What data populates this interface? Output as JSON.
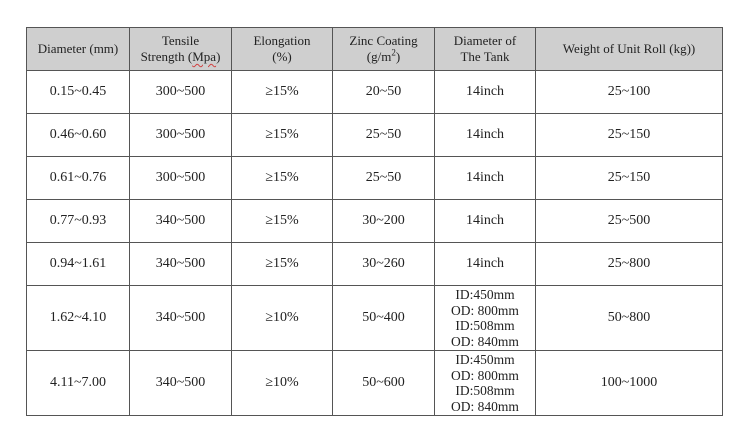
{
  "table": {
    "headers": {
      "diameter": "Diameter (mm)",
      "tensile_line1": "Tensile",
      "tensile_line2_prefix": "Strength (",
      "tensile_unit": "Mpa",
      "tensile_line2_suffix": ")",
      "elongation_line1": "Elongation",
      "elongation_line2": "(%)",
      "zinc_line1": "Zinc Coating",
      "zinc_line2_prefix": "(g/m",
      "zinc_sup": "2",
      "zinc_line2_suffix": ")",
      "tank_line1": "Diameter of",
      "tank_line2": "The Tank",
      "weight": "Weight of Unit Roll (kg))"
    },
    "rows": [
      {
        "diameter": "0.15~0.45",
        "tensile": "300~500",
        "elongation": "≥15%",
        "zinc": "20~50",
        "tank": [
          "14inch"
        ],
        "weight": "25~100"
      },
      {
        "diameter": "0.46~0.60",
        "tensile": "300~500",
        "elongation": "≥15%",
        "zinc": "25~50",
        "tank": [
          "14inch"
        ],
        "weight": "25~150"
      },
      {
        "diameter": "0.61~0.76",
        "tensile": "300~500",
        "elongation": "≥15%",
        "zinc": "25~50",
        "tank": [
          "14inch"
        ],
        "weight": "25~150"
      },
      {
        "diameter": "0.77~0.93",
        "tensile": "340~500",
        "elongation": "≥15%",
        "zinc": "30~200",
        "tank": [
          "14inch"
        ],
        "weight": "25~500"
      },
      {
        "diameter": "0.94~1.61",
        "tensile": "340~500",
        "elongation": "≥15%",
        "zinc": "30~260",
        "tank": [
          "14inch"
        ],
        "weight": "25~800"
      },
      {
        "diameter": "1.62~4.10",
        "tensile": "340~500",
        "elongation": "≥10%",
        "zinc": "50~400",
        "tank": [
          "ID:450mm",
          "OD: 800mm",
          "ID:508mm",
          "OD: 840mm"
        ],
        "weight": "50~800"
      },
      {
        "diameter": "4.11~7.00",
        "tensile": "340~500",
        "elongation": "≥10%",
        "zinc": "50~600",
        "tank": [
          "ID:450mm",
          "OD: 800mm",
          "ID:508mm",
          "OD: 840mm"
        ],
        "weight": "100~1000"
      }
    ]
  },
  "colors": {
    "header_background": "#cfcfcf",
    "border": "#555555",
    "text": "#222222",
    "spellcheck_underline": "#d04040"
  }
}
